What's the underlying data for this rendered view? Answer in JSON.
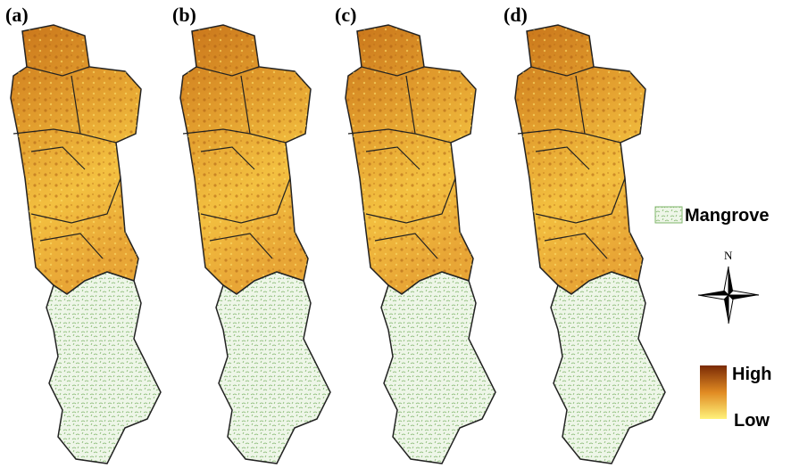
{
  "panels": [
    {
      "label": "(a)"
    },
    {
      "label": "(b)"
    },
    {
      "label": "(c)"
    },
    {
      "label": "(d)"
    }
  ],
  "legend": {
    "mangrove": "Mangrove",
    "north": "N",
    "high": "High",
    "low": "Low"
  }
}
